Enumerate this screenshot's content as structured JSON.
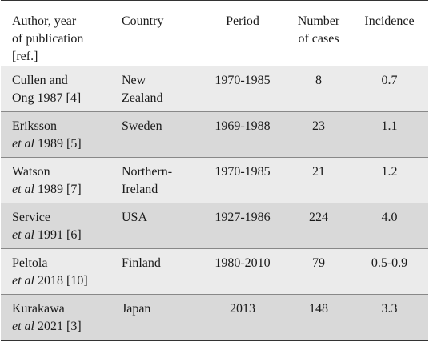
{
  "headers": {
    "author": [
      "Author, year",
      "of publication",
      "[ref.]"
    ],
    "country": "Country",
    "period": "Period",
    "cases": [
      "Number",
      "of cases"
    ],
    "incidence": "Incidence"
  },
  "rows": [
    {
      "author_line1": "Cullen and",
      "author_etal": "",
      "author_line2": "Ong 1987 [4]",
      "country_line1": "New",
      "country_line2": "Zealand",
      "period": "1970-1985",
      "cases": "8",
      "incidence": "0.7"
    },
    {
      "author_line1": "Eriksson",
      "author_etal": "et al",
      "author_line2": " 1989 [5]",
      "country_line1": "Sweden",
      "country_line2": "",
      "period": "1969-1988",
      "cases": "23",
      "incidence": "1.1"
    },
    {
      "author_line1": "Watson",
      "author_etal": "et al",
      "author_line2": " 1989 [7]",
      "country_line1": "Northern-",
      "country_line2": "Ireland",
      "period": "1970-1985",
      "cases": "21",
      "incidence": "1.2"
    },
    {
      "author_line1": "Service",
      "author_etal": "et al",
      "author_line2": " 1991 [6]",
      "country_line1": "USA",
      "country_line2": "",
      "period": "1927-1986",
      "cases": "224",
      "incidence": "4.0"
    },
    {
      "author_line1": "Peltola",
      "author_etal": "et al",
      "author_line2": " 2018 [10]",
      "country_line1": "Finland",
      "country_line2": "",
      "period": "1980-2010",
      "cases": "79",
      "incidence": "0.5-0.9"
    },
    {
      "author_line1": "Kurakawa",
      "author_etal": "et al",
      "author_line2": " 2021 [3]",
      "country_line1": "Japan",
      "country_line2": "",
      "period": "2013",
      "cases": "148",
      "incidence": "3.3"
    }
  ]
}
